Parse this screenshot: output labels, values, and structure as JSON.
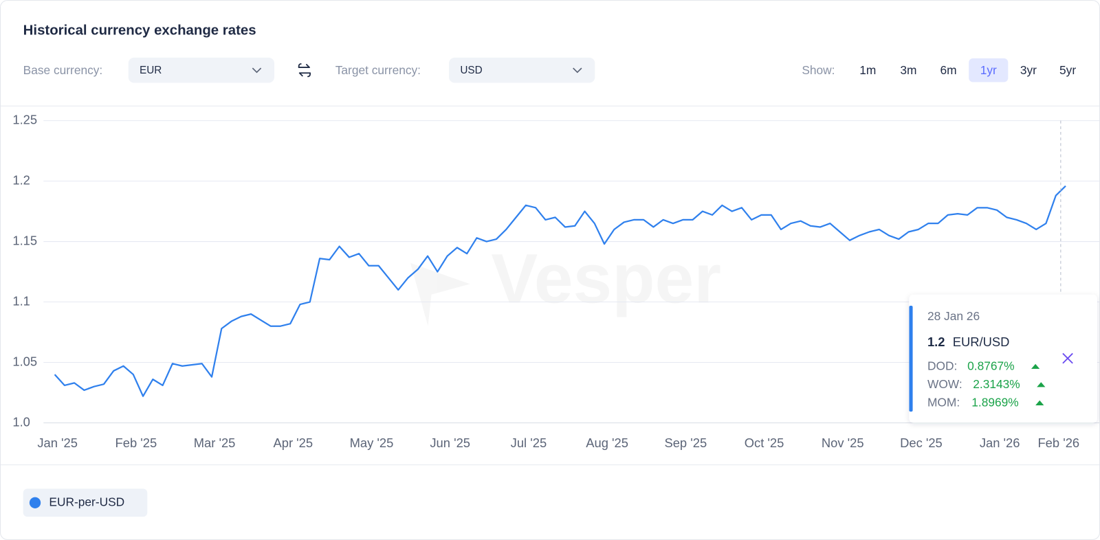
{
  "header": {
    "title": "Historical currency exchange rates",
    "base_label": "Base currency:",
    "base_value": "EUR",
    "target_label": "Target currency:",
    "target_value": "USD",
    "show_label": "Show:",
    "ranges": [
      "1m",
      "3m",
      "6m",
      "1yr",
      "3yr",
      "5yr"
    ],
    "active_range_index": 3
  },
  "watermark": "Vesper",
  "chart_data": {
    "type": "line",
    "categories": [
      "Jan '25",
      null,
      null,
      null,
      null,
      null,
      null,
      null,
      "Feb '25",
      null,
      null,
      null,
      null,
      null,
      null,
      null,
      "Mar '25",
      null,
      null,
      null,
      null,
      null,
      null,
      null,
      "Apr '25",
      null,
      null,
      null,
      null,
      null,
      null,
      null,
      "May '25",
      null,
      null,
      null,
      null,
      null,
      null,
      null,
      "Jun '25",
      null,
      null,
      null,
      null,
      null,
      null,
      null,
      "Jul '25",
      null,
      null,
      null,
      null,
      null,
      null,
      null,
      "Aug '25",
      null,
      null,
      null,
      null,
      null,
      null,
      null,
      "Sep '25",
      null,
      null,
      null,
      null,
      null,
      null,
      null,
      "Oct '25",
      null,
      null,
      null,
      null,
      null,
      null,
      null,
      "Nov '25",
      null,
      null,
      null,
      null,
      null,
      null,
      null,
      "Dec '25",
      null,
      null,
      null,
      null,
      null,
      null,
      null,
      "Jan '26",
      null,
      null,
      null,
      null,
      null,
      "Feb '26",
      null
    ],
    "series": [
      {
        "name": "EUR-per-USD",
        "color": "#2f80ed",
        "values": [
          1.04,
          1.031,
          1.033,
          1.027,
          1.03,
          1.032,
          1.043,
          1.047,
          1.04,
          1.022,
          1.036,
          1.031,
          1.049,
          1.047,
          1.048,
          1.049,
          1.038,
          1.078,
          1.084,
          1.088,
          1.09,
          1.085,
          1.08,
          1.08,
          1.082,
          1.098,
          1.1,
          1.136,
          1.135,
          1.146,
          1.137,
          1.14,
          1.13,
          1.13,
          1.12,
          1.11,
          1.12,
          1.127,
          1.138,
          1.125,
          1.138,
          1.145,
          1.14,
          1.153,
          1.15,
          1.152,
          1.16,
          1.17,
          1.18,
          1.178,
          1.168,
          1.17,
          1.162,
          1.163,
          1.175,
          1.165,
          1.148,
          1.16,
          1.166,
          1.168,
          1.168,
          1.162,
          1.168,
          1.165,
          1.168,
          1.168,
          1.175,
          1.172,
          1.18,
          1.175,
          1.178,
          1.168,
          1.172,
          1.172,
          1.16,
          1.165,
          1.167,
          1.163,
          1.162,
          1.165,
          1.158,
          1.151,
          1.155,
          1.158,
          1.16,
          1.155,
          1.152,
          1.158,
          1.16,
          1.165,
          1.165,
          1.172,
          1.173,
          1.172,
          1.178,
          1.178,
          1.176,
          1.17,
          1.168,
          1.165,
          1.16,
          1.165,
          1.188,
          1.196
        ]
      }
    ],
    "ylim": [
      1,
      1.25
    ],
    "yticks": [
      {
        "value": 1,
        "label": "1.0"
      },
      1.05,
      1.1,
      1.15,
      1.2,
      1.25
    ],
    "grid": true
  },
  "tooltip": {
    "date": "28 Jan 26",
    "value": "1.2",
    "pair": "EUR/USD",
    "rows": [
      [
        "DOD:",
        "0.8767%"
      ],
      [
        "WOW:",
        "2.3143%"
      ],
      [
        "MOM:",
        "1.8969%"
      ]
    ]
  }
}
